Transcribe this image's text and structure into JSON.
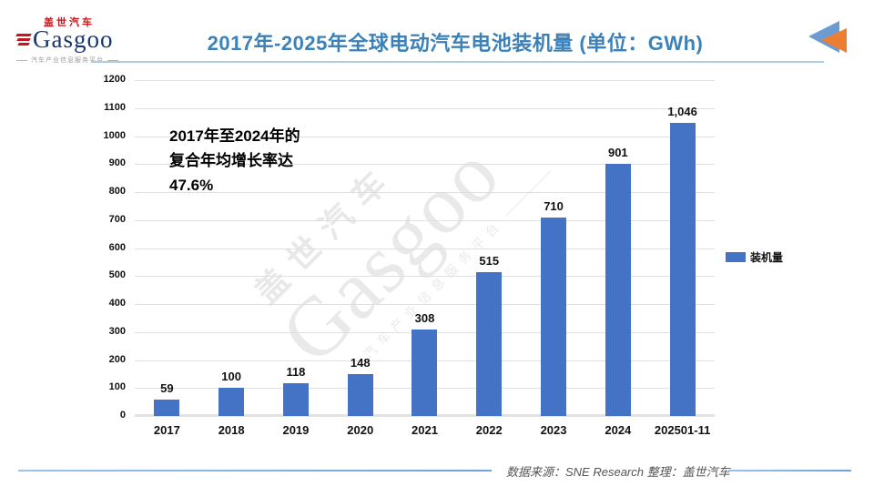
{
  "header": {
    "logo": {
      "cn": "盖世汽车",
      "en": "Gasgoo",
      "tagline": "汽车产业信息服务平台"
    },
    "title": "2017年-2025年全球电动汽车电池装机量 (单位：GWh)"
  },
  "chart_data": {
    "type": "bar",
    "title": "2017年-2025年全球电动汽车电池装机量 (单位：GWh)",
    "categories": [
      "2017",
      "2018",
      "2019",
      "2020",
      "2021",
      "2022",
      "2023",
      "2024",
      "202501-11"
    ],
    "values": [
      59,
      100,
      118,
      148,
      308,
      515,
      710,
      901,
      1046
    ],
    "value_labels": [
      "59",
      "100",
      "118",
      "148",
      "308",
      "515",
      "710",
      "901",
      "1,046"
    ],
    "unit": "GWh",
    "ylim": [
      0,
      1200
    ],
    "yticks": [
      0,
      100,
      200,
      300,
      400,
      500,
      600,
      700,
      800,
      900,
      1000,
      1100,
      1200
    ],
    "grid": true,
    "bar_color": "#4472c4",
    "legend": [
      "装机量"
    ],
    "legend_position": "right",
    "annotation": "2017年至2024年的复合年均增长率达 47.6%"
  },
  "annotation": {
    "line1": "2017年至2024年的",
    "line2": "复合年均增长率达",
    "line3": "47.6%"
  },
  "legend": {
    "label": "装机量",
    "color": "#4472c4"
  },
  "watermark": {
    "cn": "盖世汽车",
    "en": "Gasgoo",
    "tagline": "汽车产业信息服务平台"
  },
  "footer": {
    "source": "数据来源：SNE Research 整理：盖世汽车"
  },
  "colors": {
    "title": "#3c81b8",
    "bar": "#4472c4",
    "arrow_blue": "#6c9bd2",
    "arrow_orange": "#ed7d31",
    "logo_red": "#c5161d",
    "logo_navy": "#17376e"
  }
}
